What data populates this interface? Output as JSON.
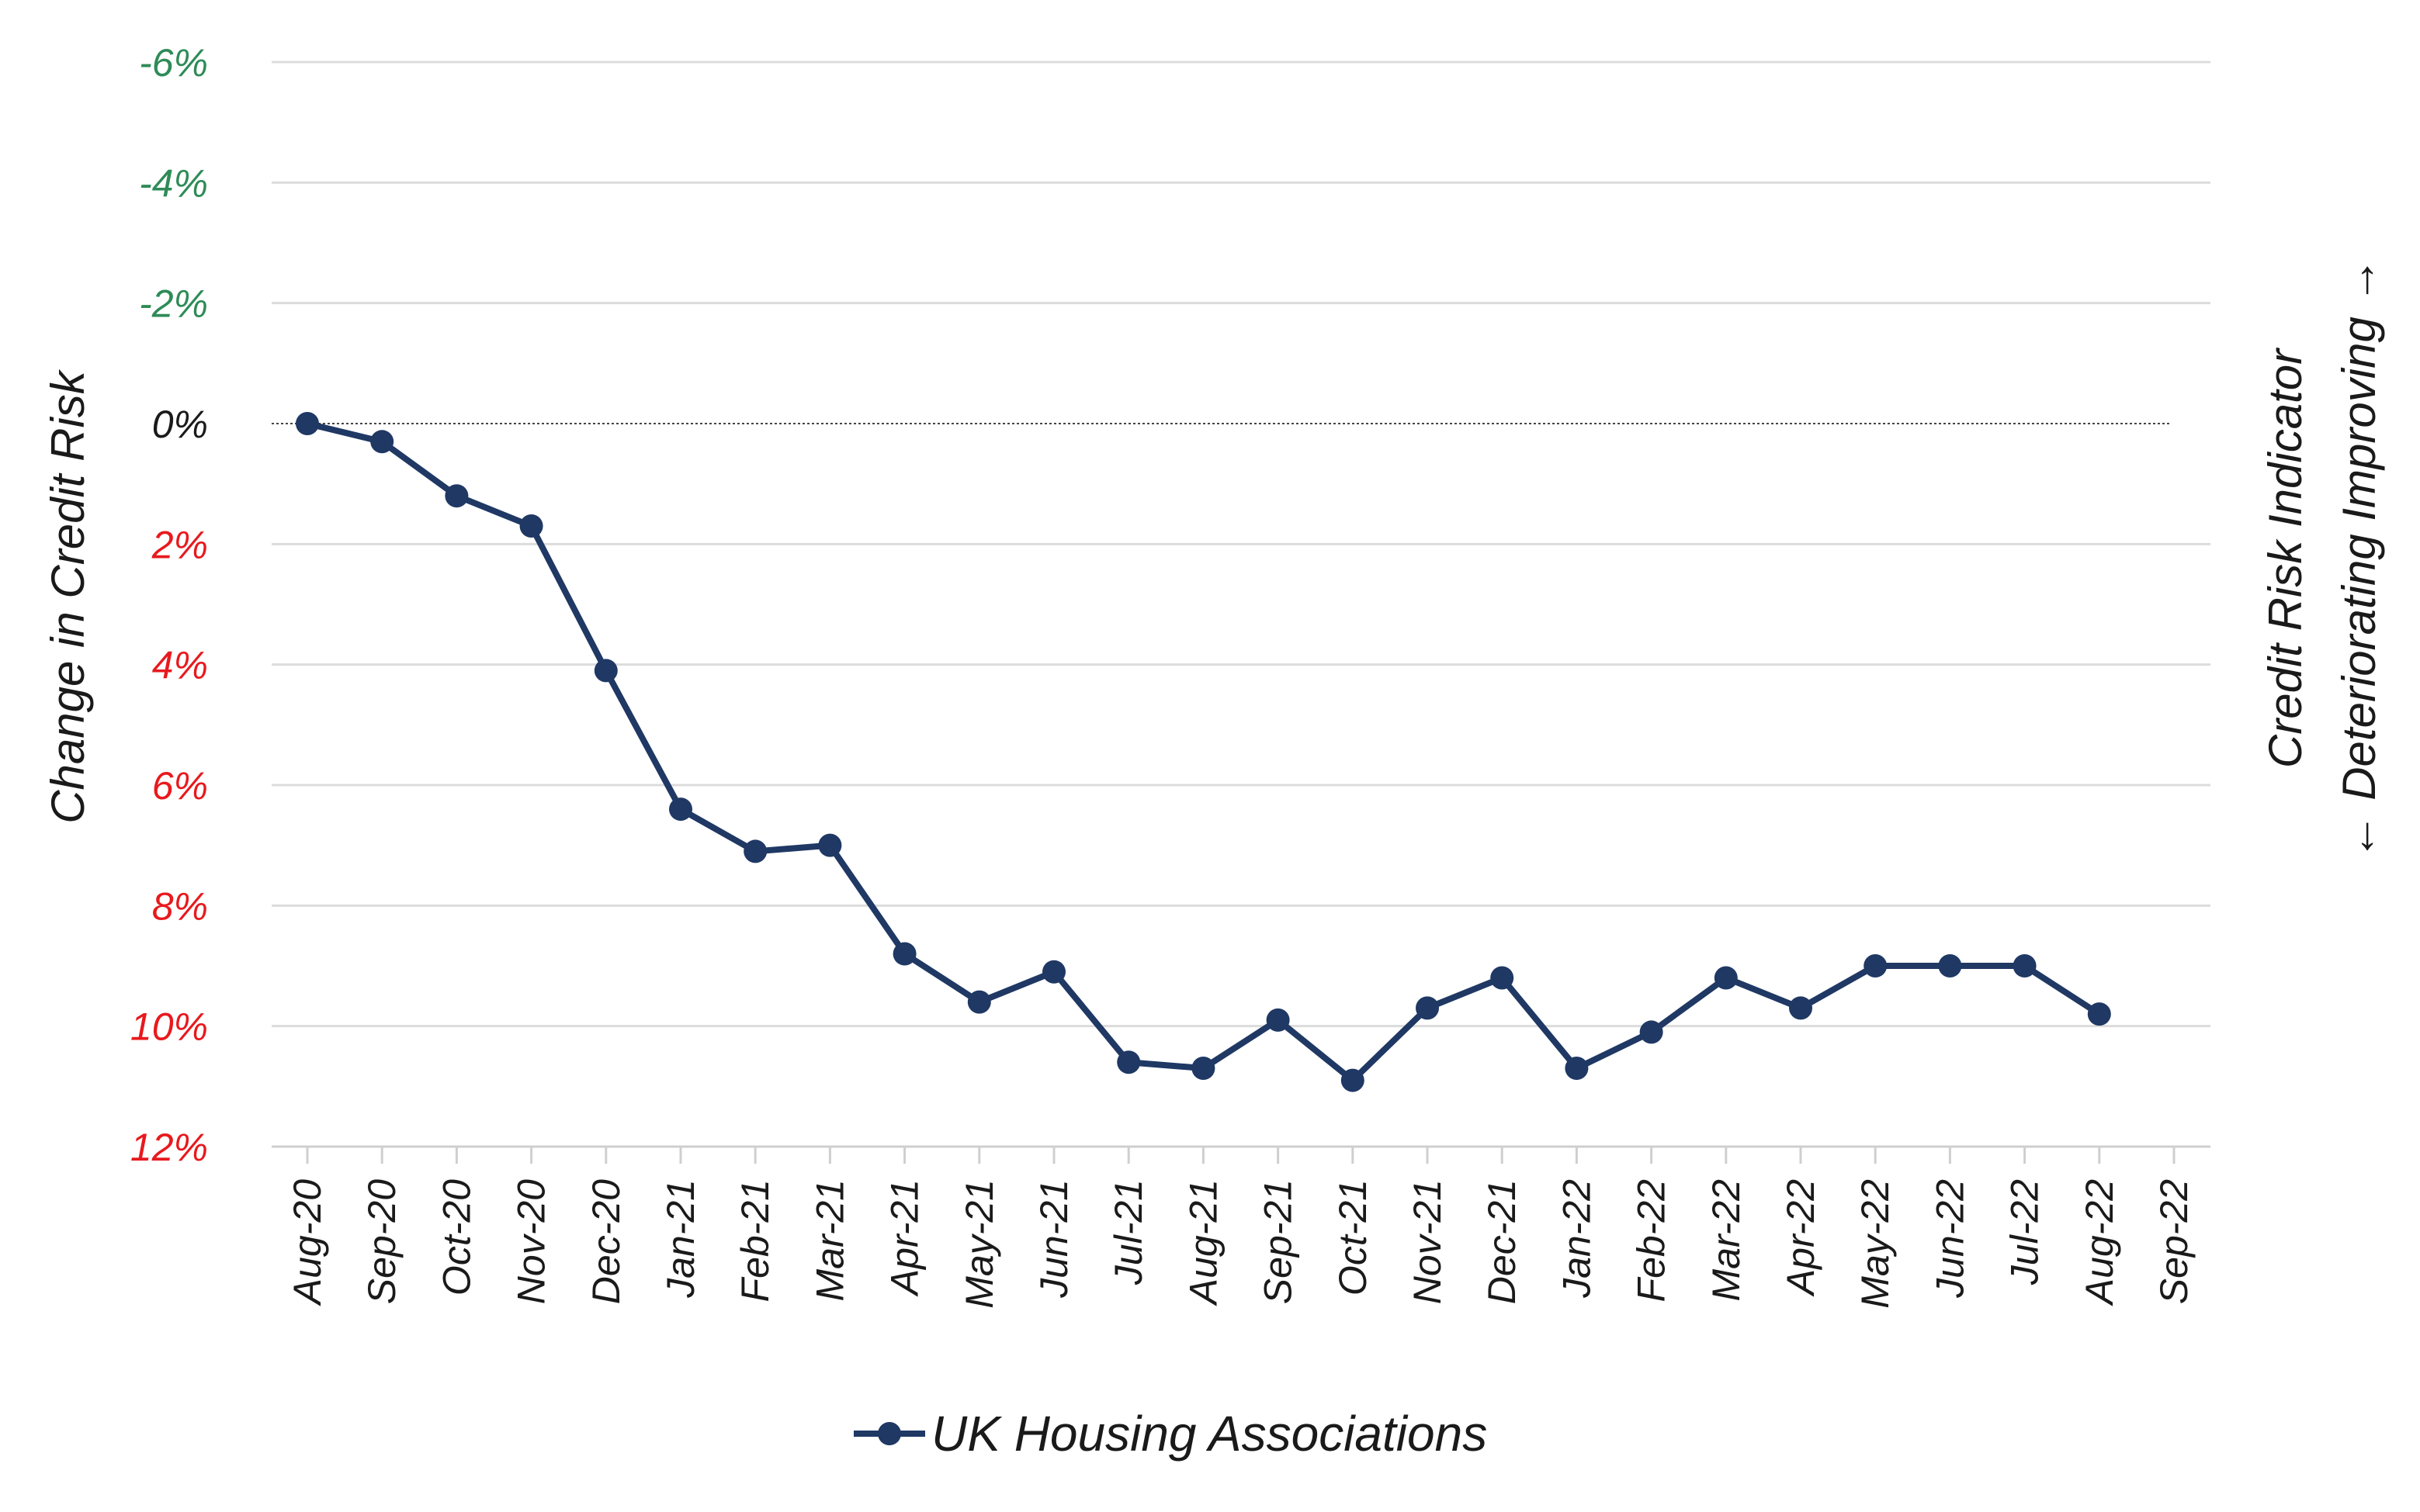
{
  "chart_data": {
    "type": "line",
    "categories": [
      "Aug-20",
      "Sep-20",
      "Oct-20",
      "Nov-20",
      "Dec-20",
      "Jan-21",
      "Feb-21",
      "Mar-21",
      "Apr-21",
      "May-21",
      "Jun-21",
      "Jul-21",
      "Aug-21",
      "Sep-21",
      "Oct-21",
      "Nov-21",
      "Dec-21",
      "Jan-22",
      "Feb-22",
      "Mar-22",
      "Apr-22",
      "May-22",
      "Jun-22",
      "Jul-22",
      "Aug-22",
      "Sep-22"
    ],
    "series": [
      {
        "name": "UK Housing Associations",
        "color": "#1f3864",
        "values": [
          0,
          0.3,
          1.2,
          1.7,
          4.1,
          6.4,
          7.1,
          7.0,
          8.8,
          9.6,
          9.1,
          10.6,
          10.7,
          9.9,
          10.9,
          9.7,
          9.2,
          10.7,
          10.1,
          9.2,
          9.7,
          9.0,
          9.0,
          9.0,
          9.8,
          null
        ]
      }
    ],
    "ylabel": "Change in Credit Risk",
    "y2label_line1": "Credit Risk Indicator",
    "y2label_line2": "← Deteriorating Improving →",
    "ylim": [
      -6,
      12
    ],
    "y_inverted": true,
    "yticks": [
      {
        "value": -6,
        "label": "-6%",
        "color": "#2e8b57"
      },
      {
        "value": -4,
        "label": "-4%",
        "color": "#2e8b57"
      },
      {
        "value": -2,
        "label": "-2%",
        "color": "#2e8b57"
      },
      {
        "value": 0,
        "label": "0%",
        "color": "#1a1a1a"
      },
      {
        "value": 2,
        "label": "2%",
        "color": "#e8191d"
      },
      {
        "value": 4,
        "label": "4%",
        "color": "#e8191d"
      },
      {
        "value": 6,
        "label": "6%",
        "color": "#e8191d"
      },
      {
        "value": 8,
        "label": "8%",
        "color": "#e8191d"
      },
      {
        "value": 10,
        "label": "10%",
        "color": "#e8191d"
      },
      {
        "value": 12,
        "label": "12%",
        "color": "#e8191d"
      }
    ],
    "grid": true,
    "zero_line": "dotted",
    "legend_position": "bottom"
  }
}
